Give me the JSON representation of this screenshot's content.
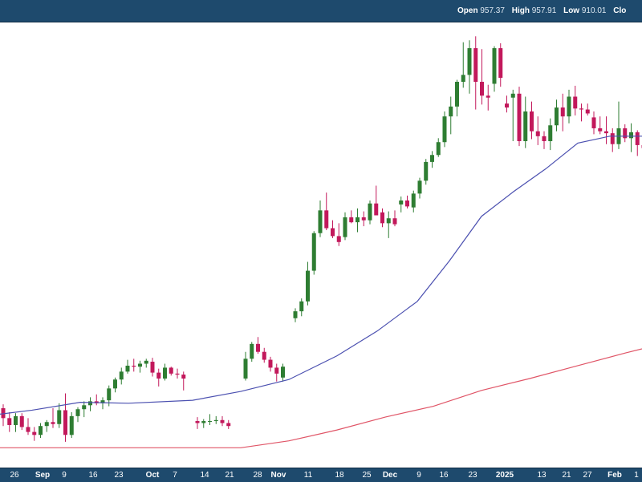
{
  "header": {
    "open_label": "Open",
    "open_value": "957.37",
    "high_label": "High",
    "high_value": "957.91",
    "low_label": "Low",
    "low_value": "910.01",
    "close_label": "Clo"
  },
  "colors": {
    "up": "#2e7d32",
    "down": "#c2185b",
    "ma_short": "#4b50b0",
    "ma_long": "#e05567",
    "bar": "#1e4a6d"
  },
  "chart_data": {
    "type": "candlestick",
    "x_tick_labels": [
      "26",
      "Sep",
      "9",
      "16",
      "23",
      "Oct",
      "7",
      "14",
      "21",
      "28",
      "Nov",
      "11",
      "18",
      "25",
      "Dec",
      "9",
      "16",
      "23",
      "2025",
      "13",
      "21",
      "27",
      "Feb",
      "1"
    ],
    "major_ticks": [
      "Sep",
      "Oct",
      "Nov",
      "Dec",
      "2025",
      "Feb"
    ],
    "ylim": [
      550,
      1000
    ],
    "ohlc_current": {
      "open": 957.37,
      "high": 957.91,
      "low": 910.01
    },
    "candles": [
      [
        610,
        614,
        592,
        600
      ],
      [
        600,
        606,
        586,
        593
      ],
      [
        593,
        605,
        586,
        602
      ],
      [
        602,
        605,
        588,
        591
      ],
      [
        591,
        600,
        583,
        586
      ],
      [
        586,
        591,
        577,
        583
      ],
      [
        583,
        595,
        580,
        592
      ],
      [
        592,
        598,
        586,
        596
      ],
      [
        596,
        610,
        590,
        594
      ],
      [
        594,
        615,
        590,
        608
      ],
      [
        608,
        625,
        576,
        583
      ],
      [
        583,
        606,
        580,
        602
      ],
      [
        602,
        611,
        596,
        609
      ],
      [
        609,
        617,
        601,
        613
      ],
      [
        613,
        621,
        607,
        617
      ],
      [
        617,
        624,
        613,
        615
      ],
      [
        615,
        621,
        609,
        618
      ],
      [
        618,
        633,
        612,
        630
      ],
      [
        630,
        641,
        626,
        639
      ],
      [
        639,
        651,
        634,
        647
      ],
      [
        647,
        659,
        645,
        653
      ],
      [
        653,
        660,
        647,
        652
      ],
      [
        652,
        658,
        646,
        655
      ],
      [
        655,
        660,
        651,
        658
      ],
      [
        657,
        661,
        642,
        646
      ],
      [
        646,
        650,
        632,
        640
      ],
      [
        640,
        655,
        638,
        651
      ],
      [
        651,
        652,
        643,
        645
      ],
      [
        645,
        650,
        640,
        644
      ],
      [
        644,
        647,
        628,
        640
      ],
      [
        597,
        601,
        589,
        595
      ],
      [
        595,
        599,
        590,
        597
      ],
      [
        597,
        604,
        593,
        597
      ],
      [
        597,
        602,
        594,
        598
      ],
      [
        598,
        602,
        592,
        595
      ],
      [
        595,
        598,
        589,
        592
      ],
      [
        640,
        667,
        638,
        660
      ],
      [
        660,
        677,
        657,
        675
      ],
      [
        675,
        682,
        665,
        667
      ],
      [
        667,
        671,
        656,
        659
      ],
      [
        659,
        662,
        647,
        651
      ],
      [
        651,
        655,
        637,
        645
      ],
      [
        641,
        655,
        637,
        652
      ],
      [
        701,
        711,
        697,
        708
      ],
      [
        708,
        721,
        703,
        718
      ],
      [
        718,
        758,
        714,
        749
      ],
      [
        749,
        789,
        745,
        787
      ],
      [
        787,
        820,
        783,
        810
      ],
      [
        810,
        828,
        790,
        792
      ],
      [
        792,
        800,
        782,
        784
      ],
      [
        784,
        797,
        774,
        778
      ],
      [
        783,
        808,
        780,
        803
      ],
      [
        803,
        810,
        797,
        798
      ],
      [
        798,
        812,
        788,
        803
      ],
      [
        803,
        809,
        794,
        800
      ],
      [
        800,
        820,
        796,
        817
      ],
      [
        817,
        835,
        807,
        805
      ],
      [
        808,
        812,
        793,
        797
      ],
      [
        797,
        809,
        782,
        802
      ],
      [
        802,
        810,
        794,
        796
      ],
      [
        816,
        824,
        808,
        820
      ],
      [
        820,
        825,
        812,
        814
      ],
      [
        813,
        830,
        808,
        827
      ],
      [
        827,
        843,
        822,
        840
      ],
      [
        840,
        862,
        836,
        859
      ],
      [
        859,
        870,
        853,
        866
      ],
      [
        866,
        883,
        864,
        879
      ],
      [
        879,
        910,
        874,
        905
      ],
      [
        905,
        925,
        887,
        915
      ],
      [
        915,
        942,
        905,
        940
      ],
      [
        940,
        980,
        934,
        947
      ],
      [
        947,
        982,
        928,
        974
      ],
      [
        974,
        986,
        912,
        940
      ],
      [
        940,
        973,
        917,
        926
      ],
      [
        926,
        937,
        911,
        924
      ],
      [
        938,
        976,
        930,
        974
      ],
      [
        974,
        979,
        935,
        944
      ],
      [
        918,
        926,
        909,
        914
      ],
      [
        924,
        932,
        880,
        928
      ],
      [
        928,
        935,
        875,
        880
      ],
      [
        880,
        925,
        873,
        910
      ],
      [
        910,
        920,
        882,
        890
      ],
      [
        890,
        905,
        876,
        885
      ],
      [
        885,
        890,
        872,
        880
      ],
      [
        880,
        903,
        871,
        896
      ],
      [
        896,
        922,
        890,
        914
      ],
      [
        914,
        928,
        890,
        905
      ],
      [
        905,
        932,
        898,
        925
      ],
      [
        925,
        936,
        906,
        913
      ],
      [
        913,
        918,
        900,
        912
      ],
      [
        912,
        918,
        906,
        908
      ],
      [
        904,
        910,
        887,
        893
      ],
      [
        893,
        905,
        887,
        890
      ],
      [
        890,
        905,
        877,
        888
      ],
      [
        888,
        893,
        869,
        877
      ],
      [
        877,
        920,
        872,
        893
      ],
      [
        893,
        897,
        879,
        883
      ],
      [
        883,
        898,
        869,
        889
      ],
      [
        889,
        891,
        865,
        876
      ],
      [
        876,
        884,
        857,
        873
      ],
      [
        864,
        870,
        850,
        860
      ]
    ],
    "ma_short": [
      [
        0,
        604
      ],
      [
        40,
        608
      ],
      [
        100,
        616
      ],
      [
        160,
        615
      ],
      [
        240,
        618
      ],
      [
        300,
        627
      ],
      [
        360,
        639
      ],
      [
        420,
        663
      ],
      [
        470,
        688
      ],
      [
        520,
        718
      ],
      [
        560,
        759
      ],
      [
        600,
        804
      ],
      [
        640,
        829
      ],
      [
        680,
        852
      ],
      [
        720,
        878
      ],
      [
        760,
        885
      ],
      [
        800,
        885
      ]
    ],
    "ma_long": [
      [
        0,
        570
      ],
      [
        100,
        570
      ],
      [
        200,
        570
      ],
      [
        300,
        570
      ],
      [
        360,
        577
      ],
      [
        420,
        588
      ],
      [
        480,
        601
      ],
      [
        540,
        612
      ],
      [
        600,
        628
      ],
      [
        660,
        640
      ],
      [
        720,
        653
      ],
      [
        780,
        666
      ],
      [
        800,
        670
      ]
    ]
  }
}
